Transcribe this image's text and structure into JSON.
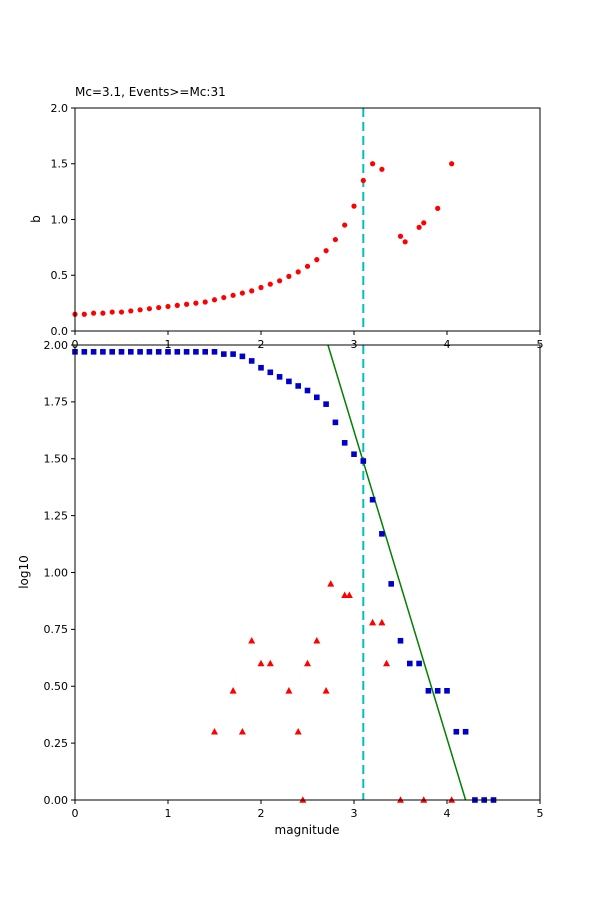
{
  "figure": {
    "background": "#ffffff"
  },
  "chart_data": [
    {
      "type": "scatter",
      "title": "Mc=3.1, Events>=Mc:31",
      "xlabel": "",
      "ylabel": "b",
      "xlim": [
        0,
        5
      ],
      "ylim": [
        0.0,
        2.0
      ],
      "xticks": [
        0,
        1,
        2,
        3,
        4,
        5
      ],
      "xtick_labels": [
        "0",
        "1",
        "2",
        "3",
        "4",
        "5"
      ],
      "yticks": [
        0.0,
        0.5,
        1.0,
        1.5,
        2.0
      ],
      "ytick_labels": [
        "0.0",
        "0.5",
        "1.0",
        "1.5",
        "2.0"
      ],
      "grid": false,
      "vline": {
        "x": 3.1,
        "color": "#00bfbf",
        "style": "dashed"
      },
      "series": [
        {
          "name": "b_value",
          "marker": "circle",
          "color": "#ff0000",
          "x": [
            0.0,
            0.1,
            0.2,
            0.3,
            0.4,
            0.5,
            0.6,
            0.7,
            0.8,
            0.9,
            1.0,
            1.1,
            1.2,
            1.3,
            1.4,
            1.5,
            1.6,
            1.7,
            1.8,
            1.9,
            2.0,
            2.1,
            2.2,
            2.3,
            2.4,
            2.5,
            2.6,
            2.7,
            2.8,
            2.9,
            3.0,
            3.1,
            3.2,
            3.3,
            3.5,
            3.55,
            3.7,
            3.75,
            3.9,
            4.05
          ],
          "y": [
            0.15,
            0.15,
            0.16,
            0.16,
            0.17,
            0.17,
            0.18,
            0.19,
            0.2,
            0.21,
            0.22,
            0.23,
            0.24,
            0.25,
            0.26,
            0.28,
            0.3,
            0.32,
            0.34,
            0.36,
            0.39,
            0.42,
            0.45,
            0.49,
            0.53,
            0.58,
            0.64,
            0.72,
            0.82,
            0.95,
            1.12,
            1.35,
            1.5,
            1.45,
            0.85,
            0.8,
            0.93,
            0.97,
            1.1,
            1.5
          ]
        }
      ]
    },
    {
      "type": "scatter",
      "title": "",
      "xlabel": "magnitude",
      "ylabel": "log10",
      "xlim": [
        0,
        5
      ],
      "ylim": [
        0.0,
        2.0
      ],
      "xticks": [
        0,
        1,
        2,
        3,
        4,
        5
      ],
      "xtick_labels": [
        "0",
        "1",
        "2",
        "3",
        "4",
        "5"
      ],
      "yticks": [
        0.0,
        0.25,
        0.5,
        0.75,
        1.0,
        1.25,
        1.5,
        1.75,
        2.0
      ],
      "ytick_labels": [
        "0.00",
        "0.25",
        "0.50",
        "0.75",
        "1.00",
        "1.25",
        "1.50",
        "1.75",
        "2.00"
      ],
      "grid": false,
      "vline": {
        "x": 3.1,
        "color": "#00bfbf",
        "style": "dashed"
      },
      "fit_line": {
        "name": "gutenberg_richter_fit",
        "color": "#008000",
        "x": [
          2.72,
          4.2
        ],
        "y": [
          2.0,
          0.0
        ]
      },
      "series": [
        {
          "name": "cumulative_count",
          "marker": "square",
          "color": "#0000cd",
          "x": [
            0.0,
            0.1,
            0.2,
            0.3,
            0.4,
            0.5,
            0.6,
            0.7,
            0.8,
            0.9,
            1.0,
            1.1,
            1.2,
            1.3,
            1.4,
            1.5,
            1.6,
            1.7,
            1.8,
            1.9,
            2.0,
            2.1,
            2.2,
            2.3,
            2.4,
            2.5,
            2.6,
            2.7,
            2.8,
            2.9,
            3.0,
            3.1,
            3.2,
            3.3,
            3.4,
            3.5,
            3.6,
            3.7,
            3.8,
            3.9,
            4.0,
            4.1,
            4.2,
            4.3,
            4.4,
            4.5
          ],
          "y": [
            1.97,
            1.97,
            1.97,
            1.97,
            1.97,
            1.97,
            1.97,
            1.97,
            1.97,
            1.97,
            1.97,
            1.97,
            1.97,
            1.97,
            1.97,
            1.97,
            1.96,
            1.96,
            1.95,
            1.93,
            1.9,
            1.88,
            1.86,
            1.84,
            1.82,
            1.8,
            1.77,
            1.74,
            1.66,
            1.57,
            1.52,
            1.49,
            1.32,
            1.17,
            0.95,
            0.7,
            0.6,
            0.6,
            0.48,
            0.48,
            0.48,
            0.3,
            0.3,
            0.0,
            0.0,
            0.0
          ]
        },
        {
          "name": "event_count",
          "marker": "triangle",
          "color": "#ff0000",
          "x": [
            1.5,
            1.7,
            1.8,
            1.9,
            2.0,
            2.1,
            2.3,
            2.4,
            2.45,
            2.5,
            2.6,
            2.7,
            2.75,
            2.9,
            2.95,
            3.2,
            3.3,
            3.35,
            3.5,
            3.75,
            4.05
          ],
          "y": [
            0.3,
            0.48,
            0.3,
            0.7,
            0.6,
            0.6,
            0.48,
            0.3,
            0.0,
            0.6,
            0.7,
            0.48,
            0.95,
            0.9,
            0.9,
            0.78,
            0.78,
            0.6,
            0.0,
            0.0,
            0.0
          ]
        }
      ]
    }
  ]
}
